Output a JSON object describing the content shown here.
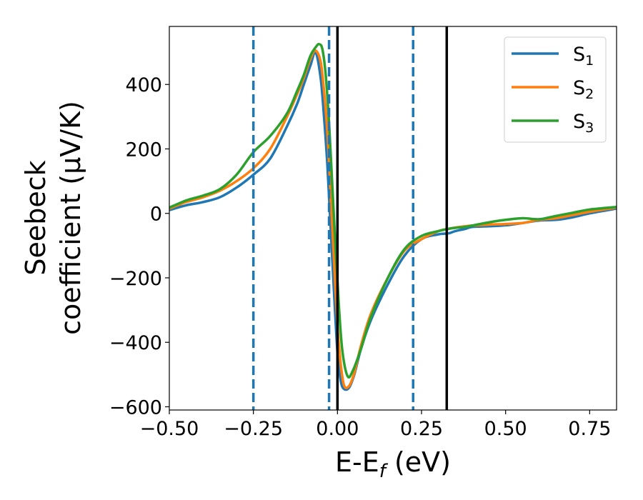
{
  "chart_data": {
    "type": "line",
    "xlabel": "E-E",
    "xlabel_sub": "f",
    "xlabel_suffix": " (eV)",
    "ylabel_line1": "Seebeck",
    "ylabel_line2": "coefficient  (μV/K)",
    "xlim": [
      -0.5,
      0.83
    ],
    "ylim": [
      -610,
      580
    ],
    "xticks": [
      -0.5,
      -0.25,
      0.0,
      0.25,
      0.5,
      0.75
    ],
    "xtick_labels": [
      "−0.50",
      "−0.25",
      "0.00",
      "0.25",
      "0.50",
      "0.75"
    ],
    "yticks": [
      -600,
      -400,
      -200,
      0,
      200,
      400
    ],
    "ytick_labels": [
      "−600",
      "−400",
      "−200",
      "0",
      "200",
      "400"
    ],
    "grid": false,
    "legend_position": "top-right",
    "vlines_dashed": [
      -0.25,
      -0.025,
      0.225
    ],
    "vlines_solid": [
      0.0,
      0.325
    ],
    "series": [
      {
        "name": "S",
        "name_sub": "1",
        "color": "#1f77b4",
        "x": [
          -0.5,
          -0.45,
          -0.4,
          -0.35,
          -0.3,
          -0.25,
          -0.2,
          -0.15,
          -0.12,
          -0.1,
          -0.08,
          -0.065,
          -0.05,
          -0.04,
          -0.03,
          -0.02,
          -0.01,
          0.0,
          0.01,
          0.02,
          0.035,
          0.05,
          0.07,
          0.1,
          0.15,
          0.2,
          0.25,
          0.3,
          0.33,
          0.35,
          0.38,
          0.4,
          0.45,
          0.5,
          0.55,
          0.6,
          0.65,
          0.7,
          0.75,
          0.83
        ],
        "y": [
          10,
          25,
          35,
          50,
          80,
          120,
          170,
          270,
          340,
          400,
          460,
          500,
          420,
          300,
          150,
          -50,
          -250,
          -430,
          -520,
          -545,
          -540,
          -500,
          -420,
          -330,
          -220,
          -130,
          -80,
          -65,
          -62,
          -55,
          -48,
          -42,
          -40,
          -37,
          -30,
          -22,
          -20,
          -12,
          0,
          15
        ]
      },
      {
        "name": "S",
        "name_sub": "2",
        "color": "#ff7f0e",
        "x": [
          -0.5,
          -0.45,
          -0.4,
          -0.35,
          -0.3,
          -0.25,
          -0.2,
          -0.15,
          -0.12,
          -0.1,
          -0.08,
          -0.065,
          -0.05,
          -0.04,
          -0.03,
          -0.02,
          -0.01,
          0.0,
          0.01,
          0.02,
          0.035,
          0.05,
          0.07,
          0.1,
          0.15,
          0.2,
          0.25,
          0.3,
          0.33,
          0.35,
          0.38,
          0.4,
          0.45,
          0.5,
          0.55,
          0.6,
          0.65,
          0.7,
          0.75,
          0.83
        ],
        "y": [
          15,
          35,
          50,
          70,
          100,
          140,
          200,
          300,
          370,
          420,
          480,
          505,
          470,
          380,
          250,
          50,
          -150,
          -350,
          -470,
          -535,
          -535,
          -495,
          -410,
          -310,
          -200,
          -115,
          -80,
          -55,
          -48,
          -44,
          -40,
          -38,
          -35,
          -33,
          -30,
          -20,
          -15,
          -5,
          5,
          18
        ]
      },
      {
        "name": "S",
        "name_sub": "3",
        "color": "#2ca02c",
        "x": [
          -0.5,
          -0.45,
          -0.4,
          -0.35,
          -0.3,
          -0.25,
          -0.2,
          -0.15,
          -0.12,
          -0.1,
          -0.08,
          -0.065,
          -0.055,
          -0.045,
          -0.035,
          -0.025,
          -0.015,
          -0.005,
          0.005,
          0.015,
          0.03,
          0.045,
          0.07,
          0.1,
          0.15,
          0.2,
          0.25,
          0.3,
          0.33,
          0.35,
          0.38,
          0.4,
          0.45,
          0.5,
          0.55,
          0.6,
          0.65,
          0.7,
          0.75,
          0.83
        ],
        "y": [
          18,
          40,
          55,
          75,
          120,
          190,
          240,
          310,
          380,
          430,
          490,
          515,
          525,
          510,
          430,
          280,
          80,
          -120,
          -300,
          -430,
          -505,
          -490,
          -420,
          -320,
          -200,
          -110,
          -70,
          -55,
          -48,
          -45,
          -42,
          -38,
          -28,
          -20,
          -15,
          -18,
          -8,
          2,
          12,
          20
        ]
      }
    ]
  }
}
